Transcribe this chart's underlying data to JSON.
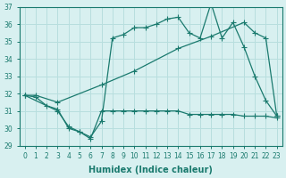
{
  "line1_x": [
    0,
    1,
    2,
    3,
    4,
    5,
    6,
    7,
    8,
    9,
    10,
    11,
    12,
    13,
    14,
    15,
    16,
    17,
    18,
    19,
    20,
    21,
    22,
    23
  ],
  "line1_y": [
    31.9,
    31.8,
    31.3,
    31.1,
    30.0,
    29.8,
    29.5,
    30.4,
    35.2,
    35.4,
    35.8,
    35.8,
    36.0,
    36.3,
    36.4,
    35.5,
    35.2,
    37.2,
    35.2,
    36.1,
    34.7,
    33.0,
    31.6,
    30.7
  ],
  "line2_x": [
    0,
    1,
    3,
    7,
    10,
    14,
    17,
    20,
    21,
    22,
    23
  ],
  "line2_y": [
    31.9,
    31.9,
    31.5,
    32.5,
    33.3,
    34.6,
    35.3,
    36.1,
    35.5,
    35.2,
    30.7
  ],
  "line3_x": [
    0,
    3,
    4,
    5,
    6,
    7,
    8,
    9,
    10,
    11,
    12,
    13,
    14,
    15,
    16,
    17,
    18,
    19,
    20,
    21,
    22,
    23
  ],
  "line3_y": [
    31.9,
    31.0,
    30.1,
    29.8,
    29.4,
    31.0,
    31.0,
    31.0,
    31.0,
    31.0,
    31.0,
    31.0,
    31.0,
    30.8,
    30.8,
    30.8,
    30.8,
    30.8,
    30.7,
    30.7,
    30.7,
    30.6
  ],
  "color": "#1a7a6e",
  "bg_color": "#d8f0f0",
  "grid_color": "#b8dede",
  "xlabel": "Humidex (Indice chaleur)",
  "xlim": [
    -0.5,
    23.5
  ],
  "ylim": [
    29,
    37
  ],
  "yticks": [
    29,
    30,
    31,
    32,
    33,
    34,
    35,
    36,
    37
  ],
  "xticks": [
    0,
    1,
    2,
    3,
    4,
    5,
    6,
    7,
    8,
    9,
    10,
    11,
    12,
    13,
    14,
    15,
    16,
    17,
    18,
    19,
    20,
    21,
    22,
    23
  ]
}
